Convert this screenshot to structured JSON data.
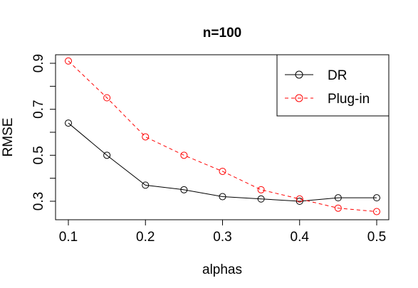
{
  "chart_data": {
    "type": "line",
    "title": "n=100",
    "xlabel": "alphas",
    "ylabel": "RMSE",
    "x": [
      0.1,
      0.15,
      0.2,
      0.25,
      0.3,
      0.35,
      0.4,
      0.45,
      0.5
    ],
    "xlim": [
      0.1,
      0.5
    ],
    "ylim": [
      0.25,
      0.91
    ],
    "xticks": [
      "0.1",
      "0.2",
      "0.3",
      "0.4",
      "0.5"
    ],
    "yticks": [
      "0.3",
      "0.5",
      "0.7",
      "0.9"
    ],
    "legend_position": "top-right",
    "grid": false,
    "series": [
      {
        "name": "DR",
        "color": "#000000",
        "line_style": "solid",
        "marker": "open-circle",
        "values": [
          0.64,
          0.5,
          0.37,
          0.35,
          0.32,
          0.31,
          0.3,
          0.315,
          0.315
        ]
      },
      {
        "name": "Plug-in",
        "color": "#ff0000",
        "line_style": "dashed",
        "marker": "open-circle",
        "values": [
          0.91,
          0.75,
          0.58,
          0.5,
          0.43,
          0.35,
          0.31,
          0.27,
          0.255
        ]
      }
    ]
  }
}
